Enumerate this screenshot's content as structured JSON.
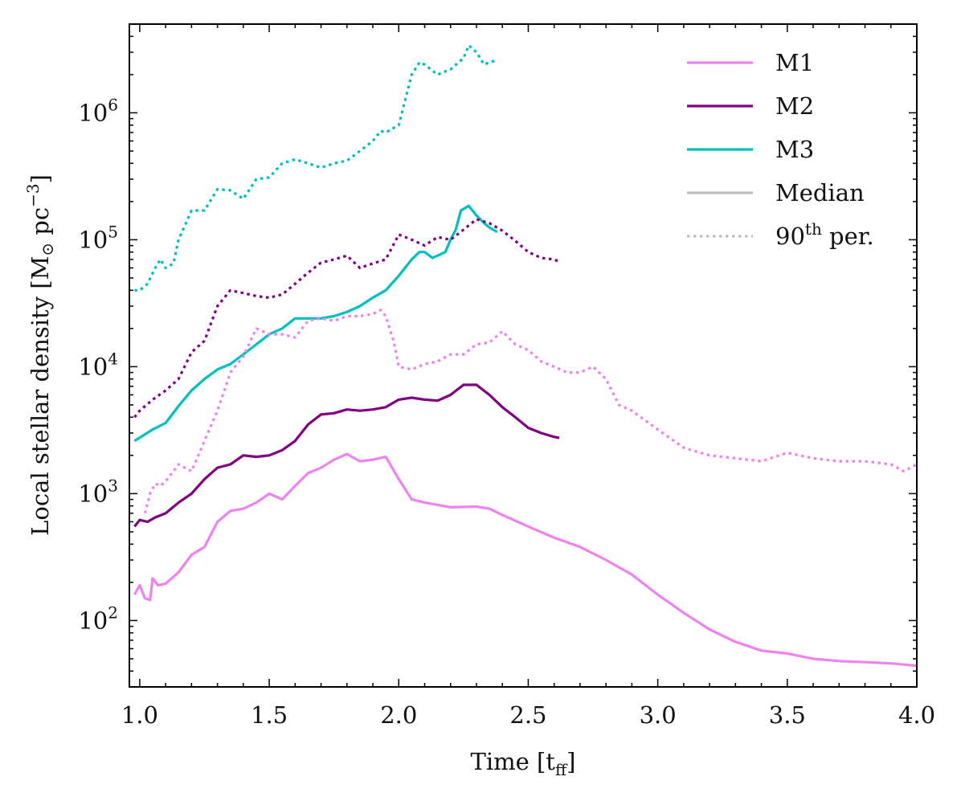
{
  "chart_data": {
    "type": "line",
    "title": "",
    "xlabel": "Time [t",
    "xlabel_sub": "ff",
    "xlabel_end": "]",
    "ylabel": "Local stellar density [M",
    "ylabel_sun": "⊙",
    "ylabel_unit": " pc",
    "ylabel_exp": "−3",
    "ylabel_end": "]",
    "xlim": [
      0.96,
      4.0
    ],
    "ylim": [
      30,
      5000000
    ],
    "yscale": "log",
    "grid": false,
    "legend_position": "top-right",
    "xticks": [
      1.0,
      1.5,
      2.0,
      2.5,
      3.0,
      3.5,
      4.0
    ],
    "xtick_labels": [
      "1.0",
      "1.5",
      "2.0",
      "2.5",
      "3.0",
      "3.5",
      "4.0"
    ],
    "ytick_labels": [
      {
        "value": 100,
        "base": "10",
        "exp": "2"
      },
      {
        "value": 1000,
        "base": "10",
        "exp": "3"
      },
      {
        "value": 10000,
        "base": "10",
        "exp": "4"
      },
      {
        "value": 100000,
        "base": "10",
        "exp": "5"
      },
      {
        "value": 1000000,
        "base": "10",
        "exp": "6"
      }
    ],
    "legend": [
      {
        "label": "M1",
        "color": "#ee82ee",
        "style": "solid"
      },
      {
        "label": "M2",
        "color": "#800080",
        "style": "solid"
      },
      {
        "label": "M3",
        "color": "#00bfbf",
        "style": "solid"
      },
      {
        "label": "Median",
        "color": "#bfbfbf",
        "style": "solid"
      },
      {
        "label": "90",
        "sup": "th",
        "tail": " per.",
        "color": "#bfbfbf",
        "style": "dotted"
      }
    ],
    "series": [
      {
        "model": "M1",
        "stat": "median",
        "color": "#ee82ee",
        "style": "solid",
        "x": [
          0.98,
          1.0,
          1.02,
          1.04,
          1.05,
          1.07,
          1.1,
          1.15,
          1.2,
          1.25,
          1.3,
          1.35,
          1.4,
          1.45,
          1.5,
          1.55,
          1.6,
          1.65,
          1.7,
          1.75,
          1.8,
          1.85,
          1.9,
          1.95,
          2.0,
          2.05,
          2.1,
          2.2,
          2.3,
          2.35,
          2.4,
          2.5,
          2.6,
          2.7,
          2.8,
          2.9,
          3.0,
          3.1,
          3.2,
          3.3,
          3.4,
          3.5,
          3.6,
          3.7,
          3.8,
          3.9,
          4.0
        ],
        "y": [
          160,
          190,
          150,
          145,
          215,
          190,
          195,
          240,
          330,
          380,
          600,
          730,
          760,
          850,
          1000,
          900,
          1150,
          1450,
          1600,
          1850,
          2050,
          1800,
          1850,
          1950,
          1300,
          900,
          850,
          780,
          790,
          760,
          680,
          550,
          450,
          380,
          300,
          230,
          160,
          115,
          85,
          68,
          58,
          55,
          50,
          48,
          47,
          46,
          44
        ]
      },
      {
        "model": "M2",
        "stat": "median",
        "color": "#800080",
        "style": "solid",
        "x": [
          0.98,
          1.0,
          1.03,
          1.06,
          1.1,
          1.15,
          1.2,
          1.25,
          1.3,
          1.35,
          1.4,
          1.45,
          1.5,
          1.55,
          1.6,
          1.65,
          1.7,
          1.75,
          1.8,
          1.85,
          1.9,
          1.95,
          2.0,
          2.05,
          2.1,
          2.15,
          2.2,
          2.25,
          2.3,
          2.35,
          2.4,
          2.45,
          2.5,
          2.55,
          2.6,
          2.62
        ],
        "y": [
          550,
          620,
          600,
          650,
          700,
          850,
          1000,
          1300,
          1600,
          1700,
          2000,
          1950,
          2000,
          2200,
          2600,
          3500,
          4200,
          4300,
          4600,
          4500,
          4600,
          4800,
          5500,
          5700,
          5500,
          5400,
          6000,
          7200,
          7200,
          6000,
          4800,
          4000,
          3300,
          3000,
          2800,
          2750
        ]
      },
      {
        "model": "M3",
        "stat": "median",
        "color": "#00bfbf",
        "style": "solid",
        "x": [
          0.98,
          1.05,
          1.1,
          1.15,
          1.2,
          1.25,
          1.3,
          1.35,
          1.4,
          1.45,
          1.5,
          1.55,
          1.6,
          1.65,
          1.7,
          1.75,
          1.8,
          1.85,
          1.9,
          1.95,
          2.0,
          2.05,
          2.08,
          2.1,
          2.13,
          2.15,
          2.18,
          2.2,
          2.22,
          2.24,
          2.27,
          2.3,
          2.33,
          2.35,
          2.38
        ],
        "y": [
          2600,
          3200,
          3600,
          4900,
          6500,
          8000,
          9500,
          10500,
          12500,
          15000,
          18000,
          20000,
          24000,
          24000,
          24000,
          25000,
          27000,
          30000,
          35000,
          40000,
          52000,
          70000,
          80000,
          80000,
          72000,
          75000,
          80000,
          100000,
          120000,
          170000,
          185000,
          155000,
          135000,
          125000,
          115000
        ]
      },
      {
        "model": "M1",
        "stat": "p90",
        "color": "#ee82ee",
        "style": "dotted",
        "x": [
          1.02,
          1.04,
          1.06,
          1.08,
          1.1,
          1.15,
          1.2,
          1.25,
          1.3,
          1.35,
          1.4,
          1.45,
          1.5,
          1.55,
          1.6,
          1.65,
          1.7,
          1.75,
          1.8,
          1.85,
          1.9,
          1.93,
          1.95,
          1.98,
          2.0,
          2.05,
          2.1,
          2.15,
          2.2,
          2.25,
          2.3,
          2.35,
          2.4,
          2.45,
          2.5,
          2.55,
          2.6,
          2.65,
          2.7,
          2.75,
          2.8,
          2.85,
          2.9,
          3.0,
          3.1,
          3.2,
          3.3,
          3.4,
          3.5,
          3.6,
          3.7,
          3.8,
          3.9,
          3.95,
          4.0
        ],
        "y": [
          700,
          1000,
          1200,
          1150,
          1250,
          1700,
          1500,
          2600,
          4500,
          9000,
          12000,
          20000,
          18000,
          18000,
          17000,
          23000,
          24000,
          23000,
          25000,
          25000,
          26000,
          28000,
          25000,
          16000,
          10000,
          9500,
          10500,
          11000,
          12500,
          12500,
          15000,
          15500,
          19000,
          15000,
          13500,
          11000,
          10000,
          9000,
          9000,
          10000,
          8000,
          5000,
          4500,
          3200,
          2300,
          2000,
          1900,
          1800,
          2100,
          1900,
          1800,
          1800,
          1700,
          1500,
          1700
        ]
      },
      {
        "model": "M2",
        "stat": "p90",
        "color": "#800080",
        "style": "dotted",
        "x": [
          0.98,
          1.0,
          1.05,
          1.1,
          1.15,
          1.2,
          1.25,
          1.3,
          1.35,
          1.4,
          1.45,
          1.5,
          1.55,
          1.6,
          1.65,
          1.7,
          1.75,
          1.8,
          1.85,
          1.9,
          1.95,
          2.0,
          2.05,
          2.1,
          2.15,
          2.2,
          2.25,
          2.3,
          2.35,
          2.4,
          2.45,
          2.5,
          2.55,
          2.6,
          2.62
        ],
        "y": [
          4000,
          4500,
          5500,
          6500,
          8000,
          13000,
          16000,
          30000,
          40000,
          38000,
          36000,
          35000,
          37000,
          45000,
          55000,
          66000,
          70000,
          75000,
          60000,
          65000,
          70000,
          110000,
          100000,
          90000,
          105000,
          100000,
          120000,
          145000,
          135000,
          118000,
          98000,
          80000,
          72000,
          70000,
          67000
        ]
      },
      {
        "model": "M3",
        "stat": "p90",
        "color": "#00bfbf",
        "style": "dotted",
        "x": [
          0.98,
          1.0,
          1.03,
          1.06,
          1.08,
          1.1,
          1.13,
          1.15,
          1.2,
          1.25,
          1.3,
          1.35,
          1.4,
          1.45,
          1.5,
          1.55,
          1.6,
          1.65,
          1.7,
          1.75,
          1.8,
          1.85,
          1.9,
          1.93,
          1.95,
          2.0,
          2.05,
          2.08,
          2.1,
          2.15,
          2.2,
          2.25,
          2.27,
          2.3,
          2.33,
          2.35,
          2.38
        ],
        "y": [
          40000,
          40000,
          45000,
          60000,
          70000,
          60000,
          65000,
          100000,
          170000,
          170000,
          250000,
          245000,
          210000,
          300000,
          310000,
          400000,
          430000,
          400000,
          370000,
          400000,
          420000,
          500000,
          600000,
          720000,
          700000,
          800000,
          2000000,
          2500000,
          2400000,
          2000000,
          2200000,
          2700000,
          3400000,
          3000000,
          2400000,
          2500000,
          2600000
        ]
      }
    ]
  }
}
